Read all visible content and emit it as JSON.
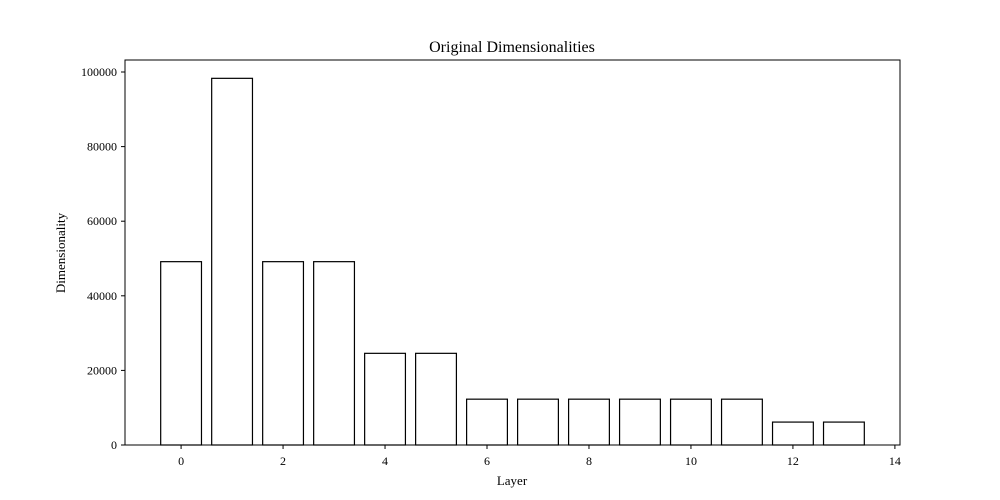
{
  "chart_data": {
    "type": "bar",
    "title": "Original Dimensionalities",
    "xlabel": "Layer",
    "ylabel": "Dimensionality",
    "x": [
      0,
      1,
      2,
      3,
      4,
      5,
      6,
      7,
      8,
      9,
      10,
      11,
      12,
      13
    ],
    "values": [
      49152,
      98304,
      49152,
      49152,
      24576,
      24576,
      12288,
      12288,
      12288,
      12288,
      12288,
      12288,
      6144,
      6144
    ],
    "xlim": [
      -1.1,
      14.1
    ],
    "ylim": [
      0,
      103219
    ],
    "xticks": [
      0,
      2,
      4,
      6,
      8,
      10,
      12,
      14
    ],
    "yticks": [
      0,
      20000,
      40000,
      60000,
      80000,
      100000
    ],
    "bar_width": 0.8,
    "bar_fill": "#ffffff",
    "bar_edge": "#000000",
    "grid": false,
    "legend": "none"
  }
}
